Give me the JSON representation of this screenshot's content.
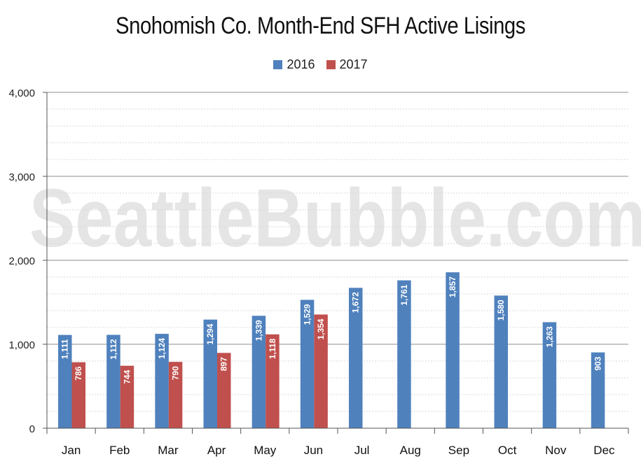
{
  "chart_data": {
    "type": "bar",
    "title": "Snohomish Co. Month-End SFH Active Lisings",
    "watermark": "SeattleBubble.com",
    "categories": [
      "Jan",
      "Feb",
      "Mar",
      "Apr",
      "May",
      "Jun",
      "Jul",
      "Aug",
      "Sep",
      "Oct",
      "Nov",
      "Dec"
    ],
    "series": [
      {
        "name": "2016",
        "color": "#4f81bd",
        "values": [
          1111,
          1112,
          1124,
          1294,
          1339,
          1529,
          1672,
          1761,
          1857,
          1580,
          1263,
          903
        ]
      },
      {
        "name": "2017",
        "color": "#c0504d",
        "values": [
          786,
          744,
          790,
          897,
          1118,
          1354,
          null,
          null,
          null,
          null,
          null,
          null
        ]
      }
    ],
    "value_labels": {
      "2016": [
        "1,111",
        "1,112",
        "1,124",
        "1,294",
        "1,339",
        "1,529",
        "1,672",
        "1,761",
        "1,857",
        "1,580",
        "1,263",
        "903"
      ],
      "2017": [
        "786",
        "744",
        "790",
        "897",
        "1,118",
        "1,354",
        "",
        "",
        "",
        "",
        "",
        ""
      ]
    },
    "yticks": [
      "0",
      "1,000",
      "2,000",
      "3,000",
      "4,000"
    ],
    "ylim": [
      0,
      4000
    ],
    "xlabel": "",
    "ylabel": "",
    "grid": true,
    "legend_position": "top"
  }
}
